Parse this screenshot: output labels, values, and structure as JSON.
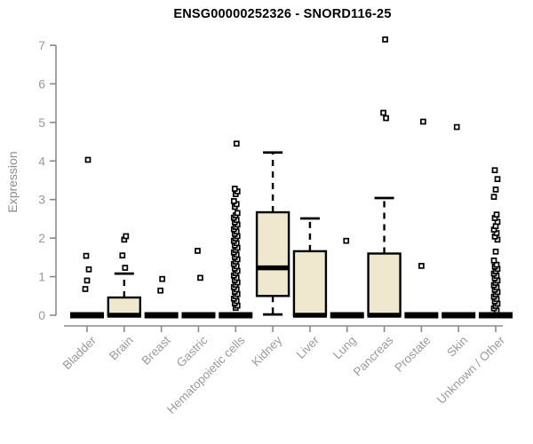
{
  "chart_data": {
    "type": "boxplot",
    "title": "ENSG00000252326 - SNORD116-25",
    "ylabel": "Expression",
    "xlabel": "",
    "ylim": [
      0,
      7
    ],
    "yticks": [
      0,
      1,
      2,
      3,
      4,
      5,
      6,
      7
    ],
    "grid": false,
    "legend": "none",
    "categories": [
      "Bladder",
      "Brain",
      "Breast",
      "Gastric",
      "Hematopoietic cells",
      "Kidney",
      "Liver",
      "Lung",
      "Pancreas",
      "Prostate",
      "Skin",
      "Unknown / Other"
    ],
    "series": [
      {
        "category": "Bladder",
        "q1": 0,
        "median": 0,
        "q3": 0,
        "whisker_low": 0,
        "whisker_high": 0,
        "outliers": [
          0.68,
          0.9,
          1.19,
          1.54,
          4.03
        ]
      },
      {
        "category": "Brain",
        "q1": 0,
        "median": 0,
        "q3": 0.46,
        "whisker_low": 0,
        "whisker_high": 1.08,
        "outliers": [
          1.23,
          1.55,
          1.96,
          2.05
        ]
      },
      {
        "category": "Breast",
        "q1": 0,
        "median": 0,
        "q3": 0,
        "whisker_low": 0,
        "whisker_high": 0,
        "outliers": [
          0.64,
          0.94
        ]
      },
      {
        "category": "Gastric",
        "q1": 0,
        "median": 0,
        "q3": 0,
        "whisker_low": 0,
        "whisker_high": 0,
        "outliers": [
          0.97,
          1.67
        ]
      },
      {
        "category": "Hematopoietic cells",
        "q1": 0,
        "median": 0,
        "q3": 0,
        "whisker_low": 0,
        "whisker_high": 0,
        "outliers": [
          0.19,
          0.25,
          0.31,
          0.37,
          0.43,
          0.49,
          0.55,
          0.61,
          0.67,
          0.73,
          0.79,
          0.85,
          0.91,
          0.97,
          1.03,
          1.09,
          1.15,
          1.21,
          1.27,
          1.33,
          1.39,
          1.45,
          1.51,
          1.57,
          1.63,
          1.69,
          1.75,
          1.81,
          1.87,
          1.93,
          1.99,
          2.05,
          2.11,
          2.17,
          2.23,
          2.29,
          2.35,
          2.41,
          2.47,
          2.53,
          2.59,
          2.65,
          2.81,
          2.88,
          2.96,
          3.14,
          3.21,
          3.28,
          4.45
        ]
      },
      {
        "category": "Kidney",
        "q1": 0.5,
        "median": 1.23,
        "q3": 2.67,
        "whisker_low": 0.02,
        "whisker_high": 4.22,
        "outliers": []
      },
      {
        "category": "Liver",
        "q1": 0,
        "median": 0,
        "q3": 1.66,
        "whisker_low": 0,
        "whisker_high": 2.51,
        "outliers": []
      },
      {
        "category": "Lung",
        "q1": 0,
        "median": 0,
        "q3": 0,
        "whisker_low": 0,
        "whisker_high": 0,
        "outliers": [
          1.93
        ]
      },
      {
        "category": "Pancreas",
        "q1": 0,
        "median": 0,
        "q3": 1.6,
        "whisker_low": 0,
        "whisker_high": 3.04,
        "outliers": [
          5.11,
          5.25,
          7.15
        ]
      },
      {
        "category": "Prostate",
        "q1": 0,
        "median": 0,
        "q3": 0,
        "whisker_low": 0,
        "whisker_high": 0,
        "outliers": [
          1.28,
          5.02
        ]
      },
      {
        "category": "Skin",
        "q1": 0,
        "median": 0,
        "q3": 0,
        "whisker_low": 0,
        "whisker_high": 0,
        "outliers": [
          4.88
        ]
      },
      {
        "category": "Unknown / Other",
        "q1": 0,
        "median": 0,
        "q3": 0,
        "whisker_low": 0,
        "whisker_high": 0,
        "outliers": [
          0.12,
          0.18,
          0.24,
          0.3,
          0.36,
          0.42,
          0.48,
          0.54,
          0.6,
          0.66,
          0.72,
          0.78,
          0.84,
          0.9,
          0.96,
          1.02,
          1.08,
          1.14,
          1.2,
          1.26,
          1.31,
          1.42,
          1.65,
          1.96,
          2.04,
          2.13,
          2.22,
          2.31,
          2.42,
          2.52,
          2.61,
          3.07,
          3.26,
          3.53,
          3.76
        ]
      }
    ],
    "colors": {
      "box_fill": "#EFE8CE",
      "box_stroke": "#000000",
      "whisker": "#000000",
      "median": "#000000",
      "outlier_fill": "#FFFFFF",
      "axis_line": "#8A8A8A",
      "tick_label": "#9A9A9A",
      "title": "#000000"
    }
  }
}
